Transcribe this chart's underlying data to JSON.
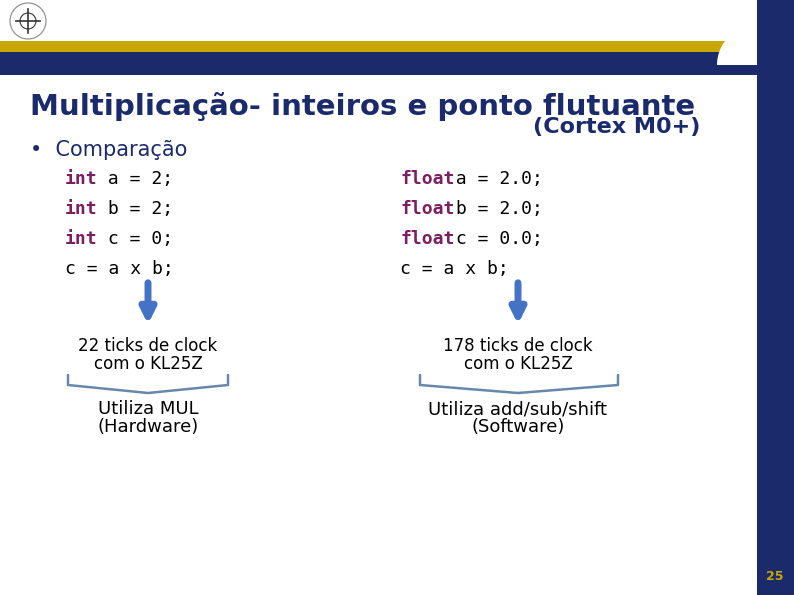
{
  "title": "Multiplicação- inteiros e ponto flutuante",
  "subtitle": "(Cortex M0+)",
  "bullet": "Comparação",
  "bg_color": "#FFFFFF",
  "header_bar_dark": "#1B2A6B",
  "header_bar_gold": "#C8A800",
  "right_panel_color": "#1B2A6B",
  "title_color": "#1B2A6B",
  "subtitle_color": "#1B2A6B",
  "bullet_color": "#1B2A6B",
  "code_left_keywords": [
    "int",
    "int",
    "int",
    ""
  ],
  "code_left_rest": [
    " a = 2;",
    " b = 2;",
    " c = 0;",
    "c = a x b;"
  ],
  "code_right_keywords": [
    "float",
    "float",
    "float",
    ""
  ],
  "code_right_rest": [
    " a = 2.0;",
    " b = 2.0;",
    " c = 0.0;",
    "c = a x b;"
  ],
  "code_keyword_color": "#7B1F5E",
  "code_normal_color": "#000000",
  "arrow_color": "#4472C4",
  "left_ticks_line1": "22 ticks de clock",
  "left_ticks_line2": "com o KL25Z",
  "right_ticks_line1": "178 ticks de clock",
  "right_ticks_line2": "com o KL25Z",
  "left_bottom_line1": "Utiliza MUL",
  "left_bottom_line2": "(Hardware)",
  "right_bottom_line1": "Utiliza add/sub/shift",
  "right_bottom_line2": "(Software)",
  "ticks_color": "#000000",
  "bottom_text_color": "#000000",
  "brace_color": "#6688AA",
  "page_number": "25",
  "page_number_color": "#C8A800"
}
